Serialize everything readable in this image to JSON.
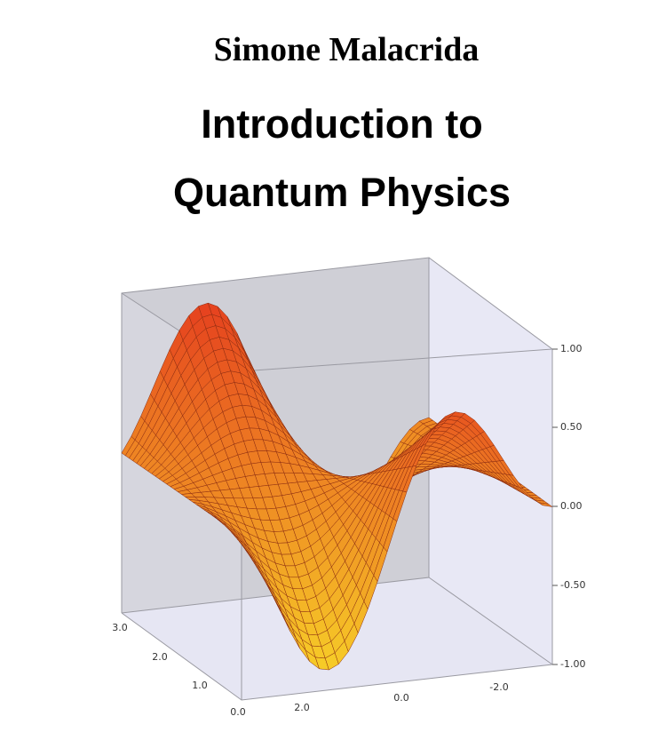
{
  "author": "Simone Malacrida",
  "title": [
    "Introduction to",
    "Quantum Physics"
  ],
  "plot": {
    "z_ticks": [
      "1.00",
      "0.50",
      "0.00",
      "-0.50",
      "-1.00"
    ],
    "depth_ticks": [
      "3.0",
      "2.0",
      "1.0",
      "0.0"
    ],
    "x_ticks": [
      "2.0",
      "0.0",
      "-2.0"
    ]
  }
}
